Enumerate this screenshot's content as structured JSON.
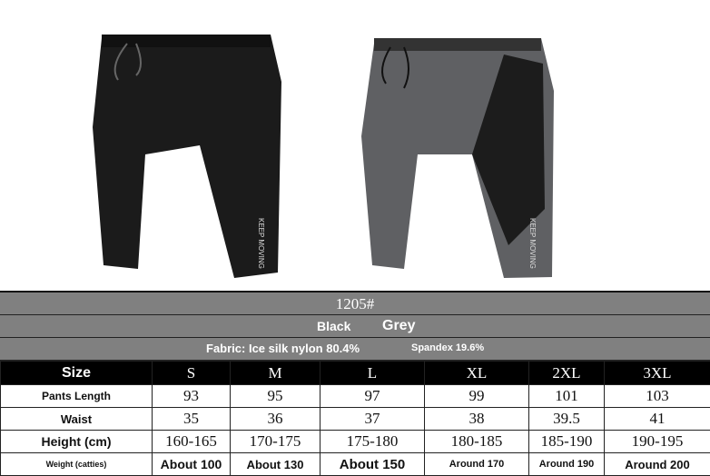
{
  "product": {
    "model": "1205#",
    "colors": [
      "Black",
      "Grey"
    ],
    "fabric": "Fabric: Ice silk nylon 80.4%",
    "spandex": "Spandex 19.6%",
    "print_text": "KEEP MOVING",
    "color_hex": {
      "black": "#1a1a1a",
      "grey": "#5f6063",
      "band": "#808080"
    }
  },
  "table": {
    "size_label": "Size",
    "sizes": [
      "S",
      "M",
      "L",
      "XL",
      "2XL",
      "3XL"
    ],
    "length_label": "Pants Length",
    "length": [
      "93",
      "95",
      "97",
      "99",
      "101",
      "103"
    ],
    "waist_label": "Waist",
    "waist": [
      "35",
      "36",
      "37",
      "38",
      "39.5",
      "41"
    ],
    "height_label": "Height (cm)",
    "height": [
      "160-165",
      "170-175",
      "175-180",
      "180-185",
      "185-190",
      "190-195"
    ],
    "weight_label": "Weight (catties)",
    "weight": [
      "About 100",
      "About 130",
      "About 150",
      "Around 170",
      "Around 190",
      "Around 200"
    ]
  }
}
